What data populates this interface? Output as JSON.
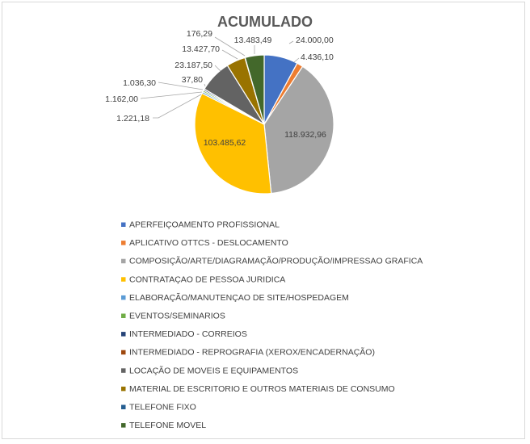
{
  "chart_data": {
    "type": "pie",
    "title": "ACUMULADO",
    "legend_position": "bottom",
    "slices": [
      {
        "label": "APERFEIÇOAMENTO PROFISSIONAL",
        "value": 24000.0,
        "display": "24.000,00",
        "color": "#4472C4"
      },
      {
        "label": "APLICATIVO OTTCS - DESLOCAMENTO",
        "value": 4436.1,
        "display": "4.436,10",
        "color": "#ED7D31"
      },
      {
        "label": "COMPOSIÇÃO/ARTE/DIAGRAMAÇÃO/PRODUÇÃO/IMPRESSAO GRAFICA",
        "value": 118932.96,
        "display": "118.932,96",
        "color": "#A5A5A5"
      },
      {
        "label": "CONTRATAÇAO DE PESSOA JURIDICA",
        "value": 103485.62,
        "display": "103.485,62",
        "color": "#FFC000"
      },
      {
        "label": "ELABORAÇÃO/MANUTENÇAO DE SITE/HOSPEDAGEM",
        "value": 1221.18,
        "display": "1.221,18",
        "color": "#5B9BD5"
      },
      {
        "label": "EVENTOS/SEMINARIOS",
        "value": 1162.0,
        "display": "1.162,00",
        "color": "#70AD47"
      },
      {
        "label": "INTERMEDIADO - CORREIOS",
        "value": 1036.3,
        "display": "1.036,30",
        "color": "#264478"
      },
      {
        "label": "INTERMEDIADO - REPROGRAFIA (XEROX/ENCADERNAÇÃO)",
        "value": 37.8,
        "display": "37,80",
        "color": "#9E480E"
      },
      {
        "label": "LOCAÇÃO DE MOVEIS E EQUIPAMENTOS",
        "value": 23187.5,
        "display": "23.187,50",
        "color": "#636363"
      },
      {
        "label": "MATERIAL DE ESCRITORIO E OUTROS MATERIAIS DE CONSUMO",
        "value": 13427.7,
        "display": "13.427,70",
        "color": "#997300"
      },
      {
        "label": "TELEFONE FIXO",
        "value": 176.29,
        "display": "176,29",
        "color": "#255E91"
      },
      {
        "label": "TELEFONE MOVEL",
        "value": 13483.49,
        "display": "13.483,49",
        "color": "#43682B"
      }
    ]
  }
}
